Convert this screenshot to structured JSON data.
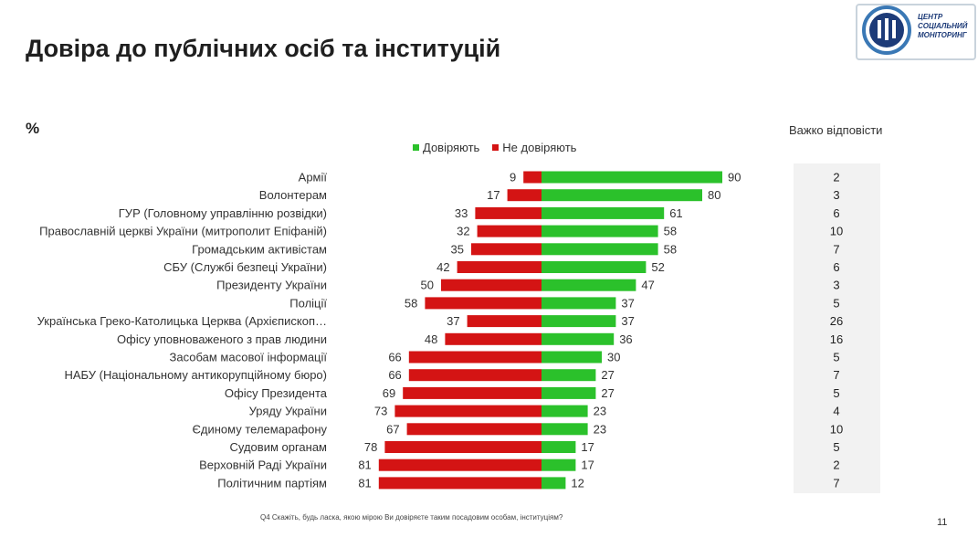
{
  "title": "Довіра до публічних осіб та інституцій",
  "unit": "%",
  "legend": {
    "trust": "Довіряють",
    "distrust": "Не довіряють"
  },
  "hard_to_say_header": "Важко відповісти",
  "footnote": "Q4 Скажіть, будь ласка, якою мірою Ви довіряєте таким посадовим особам, інституціям?",
  "page_number": "11",
  "logo": {
    "line1": "ЦЕНТР",
    "line2": "СОЦІАЛЬНИЙ",
    "line3": "МОНІТОРИНГ"
  },
  "colors": {
    "trust": "#2bc12b",
    "distrust": "#d41414"
  },
  "chart_data": {
    "type": "bar",
    "orientation": "horizontal-diverging",
    "categories": [
      "Армії",
      "Волонтерам",
      "ГУР (Головному управлінню розвідки)",
      "Православній церкві України (митрополит Епіфаній)",
      "Громадським активістам",
      "СБУ (Службі безпеці України)",
      "Президенту України",
      "Поліції",
      "Українська Греко-Католицька Церква (Архієпископ…",
      "Офісу уповноваженого з прав людини",
      "Засобам масової інформації",
      "НАБУ (Національному антикорупційному бюро)",
      "Офісу Президента",
      "Уряду України",
      "Єдиному телемарафону",
      "Судовим органам",
      "Верховній Раді України",
      "Політичним партіям"
    ],
    "series": [
      {
        "name": "Довіряють",
        "values": [
          90,
          80,
          61,
          58,
          58,
          52,
          47,
          37,
          37,
          36,
          30,
          27,
          27,
          23,
          23,
          17,
          17,
          12
        ]
      },
      {
        "name": "Не довіряють",
        "values": [
          9,
          17,
          33,
          32,
          35,
          42,
          50,
          58,
          37,
          48,
          66,
          66,
          69,
          73,
          67,
          78,
          81,
          81
        ]
      }
    ],
    "hard_to_say": [
      2,
      3,
      6,
      10,
      7,
      6,
      3,
      5,
      26,
      16,
      5,
      7,
      5,
      4,
      10,
      5,
      2,
      7
    ],
    "legend_position": "top",
    "grid": false
  }
}
